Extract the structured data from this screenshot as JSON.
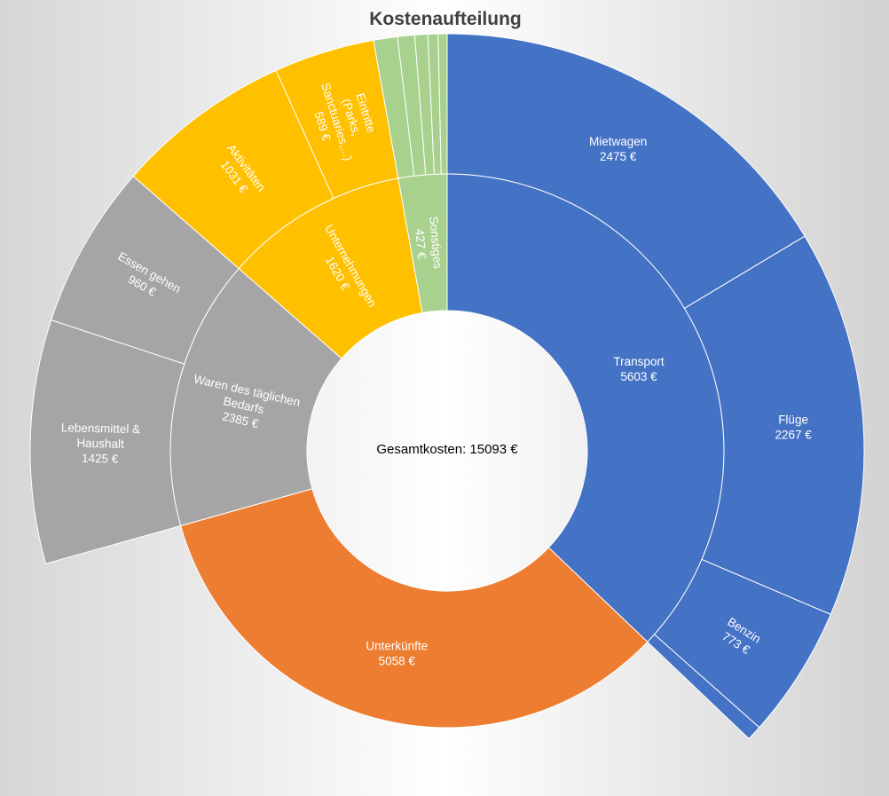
{
  "chart_data": {
    "type": "sunburst",
    "title": "Kostenaufteilung",
    "center_text": "Gesamtkosten: 15093 €",
    "total": 15093,
    "currency": "€",
    "colors": {
      "Transport": "#4472C4",
      "Unterkünfte": "#ED7D31",
      "Waren des täglichen Bedarfs": "#A5A5A5",
      "Unternehmungen": "#FFC000",
      "Sonstiges": "#A9D18E"
    },
    "categories": [
      {
        "name": "Transport",
        "value": 5603,
        "children": [
          {
            "name": "Mietwagen",
            "value": 2475
          },
          {
            "name": "Flüge",
            "value": 2267
          },
          {
            "name": "Benzin",
            "value": 773
          },
          {
            "name": "",
            "value": 88
          }
        ]
      },
      {
        "name": "Unterkünfte",
        "value": 5058,
        "children": []
      },
      {
        "name": "Waren des täglichen Bedarfs",
        "value": 2385,
        "children": [
          {
            "name": "Lebensmittel & Haushalt",
            "value": 1425
          },
          {
            "name": "Essen gehen",
            "value": 960
          }
        ]
      },
      {
        "name": "Unternehmungen",
        "value": 1620,
        "children": [
          {
            "name": "Aktivitäten",
            "value": 1031
          },
          {
            "name": "Eintritte (Parks, Sanctuaries,...)",
            "value": 589
          }
        ]
      },
      {
        "name": "Sonstiges",
        "value": 427,
        "children": [
          {
            "name": "",
            "value": 140
          },
          {
            "name": "",
            "value": 100
          },
          {
            "name": "",
            "value": 75
          },
          {
            "name": "",
            "value": 60
          },
          {
            "name": "",
            "value": 52
          }
        ]
      }
    ]
  }
}
